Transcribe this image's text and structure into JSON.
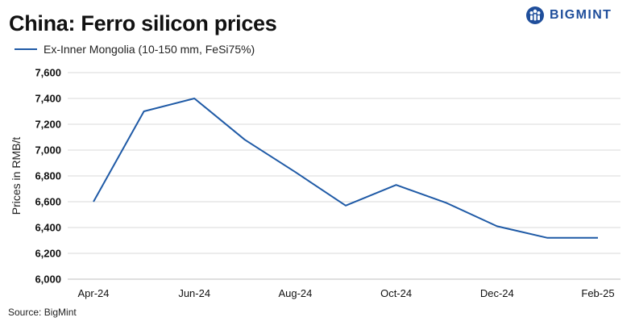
{
  "chart_data": {
    "type": "line",
    "title": "China: Ferro silicon prices",
    "ylabel": "Prices in RMB/t",
    "xlabel": "",
    "ylim": [
      6000,
      7600
    ],
    "yticks": [
      6000,
      6200,
      6400,
      6600,
      6800,
      7000,
      7200,
      7400,
      7600
    ],
    "ytick_labels": [
      "6,000",
      "6,200",
      "6,400",
      "6,600",
      "6,800",
      "7,000",
      "7,200",
      "7,400",
      "7,600"
    ],
    "x": [
      "Apr-24",
      "May-24",
      "Jun-24",
      "Jul-24",
      "Aug-24",
      "Sep-24",
      "Oct-24",
      "Nov-24",
      "Dec-24",
      "Jan-25",
      "Feb-25"
    ],
    "xtick_labels": [
      "Apr-24",
      "Jun-24",
      "Aug-24",
      "Oct-24",
      "Dec-24",
      "Feb-25"
    ],
    "series": [
      {
        "name": "Ex-Inner Mongolia (10-150 mm, FeSi75%)",
        "color": "#1f5aa6",
        "values": [
          6600,
          7300,
          7400,
          7080,
          6830,
          6570,
          6730,
          6590,
          6410,
          6320,
          6320
        ]
      }
    ],
    "grid": true,
    "legend": "top-left"
  },
  "logo": {
    "text": "BIGMINT",
    "icon": "people-icon",
    "color": "#1f4e9b"
  },
  "source": "Source:  BigMint"
}
